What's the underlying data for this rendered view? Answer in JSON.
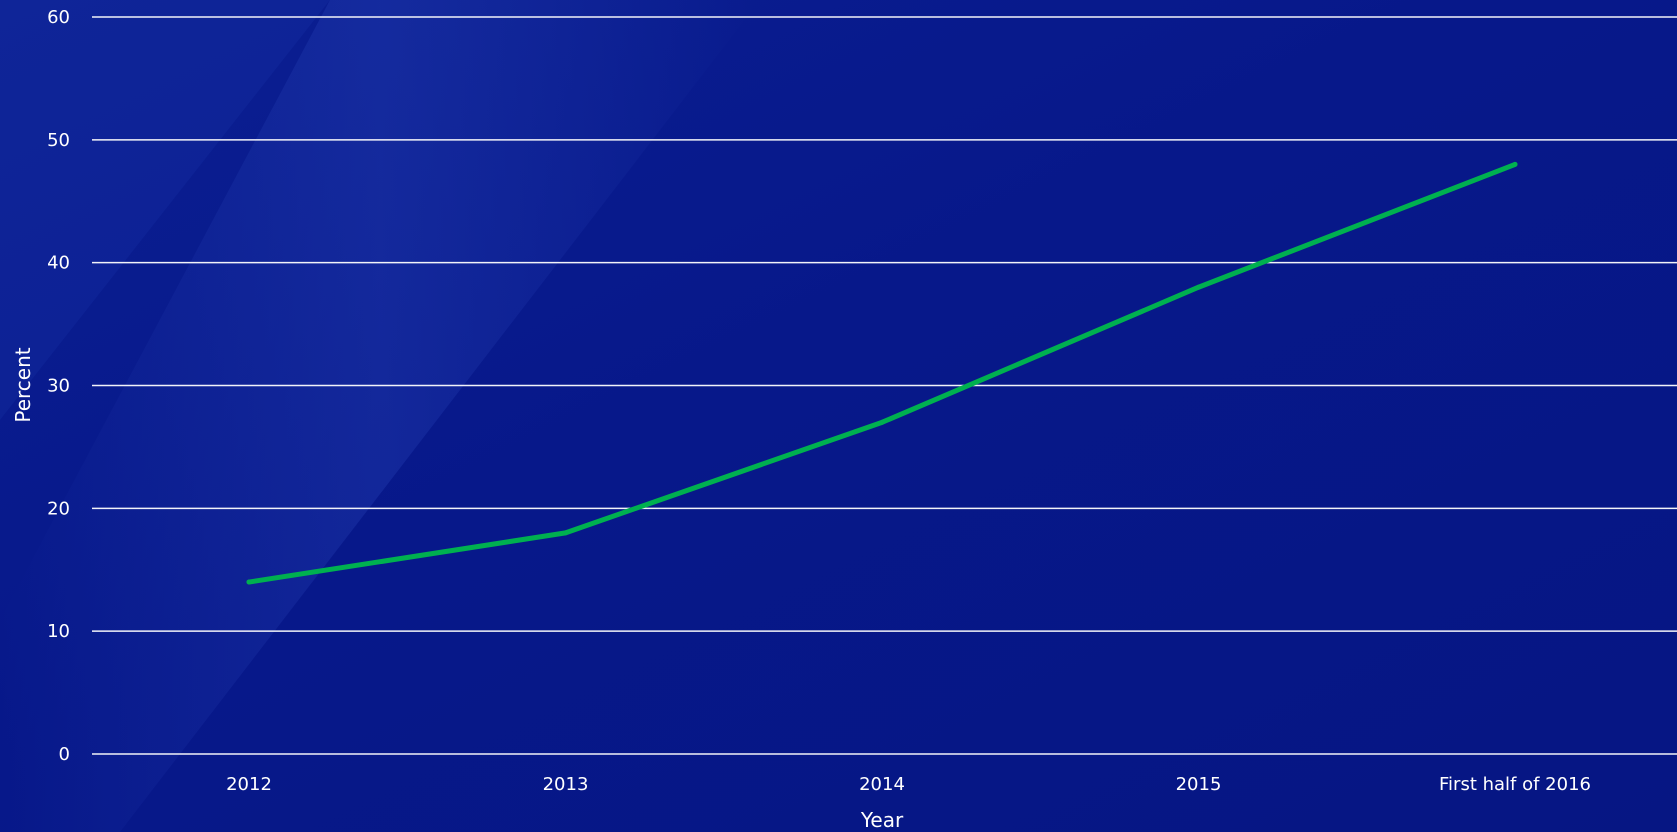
{
  "chart_data": {
    "type": "line",
    "categories": [
      "2012",
      "2013",
      "2014",
      "2015",
      "First half of 2016"
    ],
    "series": [
      {
        "values": [
          14,
          18,
          27,
          38,
          48
        ],
        "color": "#00b050"
      }
    ],
    "xlabel": "Year",
    "ylabel": "Percent",
    "ylim": [
      0,
      60
    ],
    "yticks": [
      0,
      10,
      20,
      30,
      40,
      50,
      60
    ],
    "grid": true,
    "legend": "none"
  },
  "colors": {
    "background_dark": "#041278",
    "background_light": "#14309e",
    "grid": "#ffffff",
    "text": "#ffffff"
  }
}
